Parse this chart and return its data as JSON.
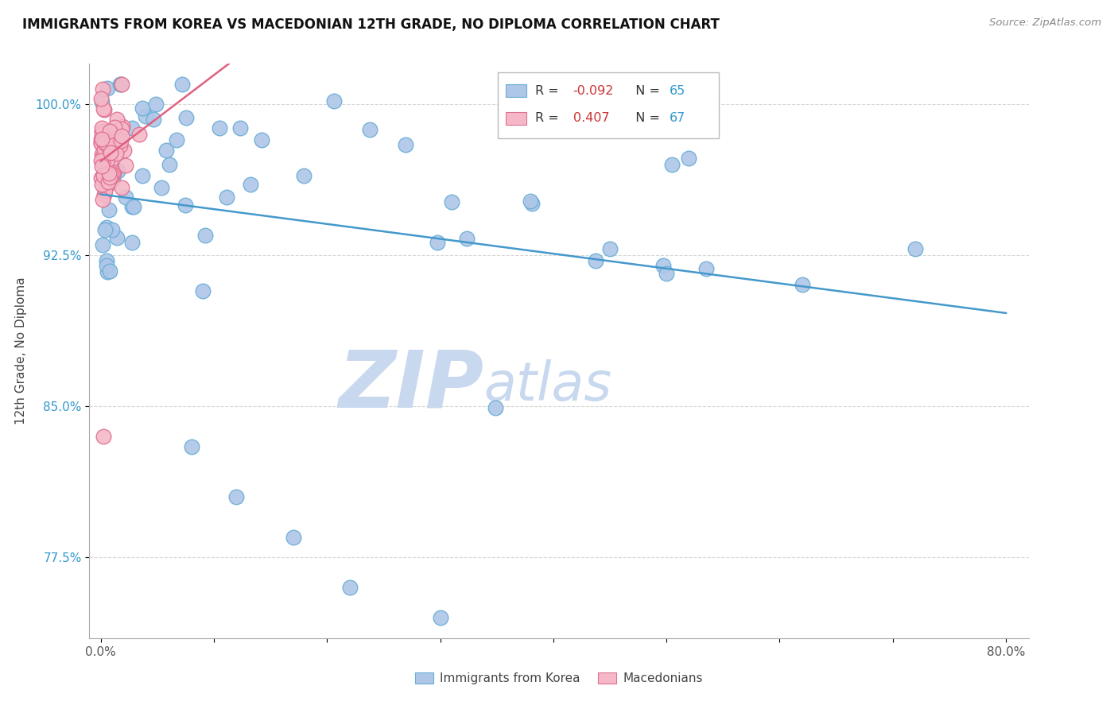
{
  "title": "IMMIGRANTS FROM KOREA VS MACEDONIAN 12TH GRADE, NO DIPLOMA CORRELATION CHART",
  "source": "Source: ZipAtlas.com",
  "ylabel": "12th Grade, No Diploma",
  "ylim": [
    73.5,
    102.0
  ],
  "xlim": [
    -0.01,
    0.82
  ],
  "y_ticks": [
    77.5,
    85.0,
    92.5,
    100.0
  ],
  "y_tick_labels": [
    "77.5%",
    "85.0%",
    "92.5%",
    "100.0%"
  ],
  "x_ticks": [
    0.0,
    0.1,
    0.2,
    0.3,
    0.4,
    0.5,
    0.6,
    0.7,
    0.8
  ],
  "x_tick_labels": [
    "0.0%",
    "",
    "",
    "",
    "",
    "",
    "",
    "",
    "80.0%"
  ],
  "korea_color": "#aec6e8",
  "korea_edge": "#6aaed6",
  "macedonian_color": "#f4b8c8",
  "macedonian_edge": "#e07090",
  "trend_korea_color": "#4499cc",
  "trend_macedonian_color": "#e06080",
  "watermark_zip_color": "#c8d8ee",
  "watermark_atlas_color": "#c8d8ee",
  "legend_korea_r": "-0.092",
  "legend_korea_n": "65",
  "legend_mac_r": "0.407",
  "legend_mac_n": "67",
  "r_color": "#cc3333",
  "n_color": "#3399cc",
  "grid_color": "#cccccc",
  "grid_style": "--"
}
